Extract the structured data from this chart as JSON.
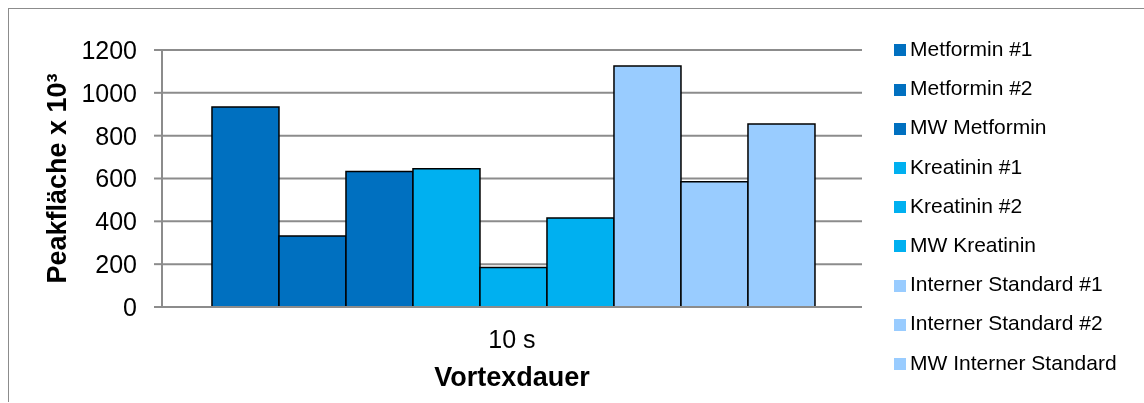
{
  "chart_data": {
    "type": "bar",
    "xlabel": "Vortexdauer",
    "ylabel": "Peakfläche x 10³",
    "categories": [
      "10 s"
    ],
    "series": [
      {
        "name": "Metformin #1",
        "color": "#0070c0",
        "values": [
          934
        ]
      },
      {
        "name": "Metformin #2",
        "color": "#0070c0",
        "values": [
          332
        ]
      },
      {
        "name": "MW Metformin",
        "color": "#0070c0",
        "values": [
          633
        ]
      },
      {
        "name": "Kreatinin #1",
        "color": "#00b0f0",
        "values": [
          646
        ]
      },
      {
        "name": "Kreatinin #2",
        "color": "#00b0f0",
        "values": [
          185
        ]
      },
      {
        "name": "MW Kreatinin",
        "color": "#00b0f0",
        "values": [
          416
        ]
      },
      {
        "name": "Interner Standard #1",
        "color": "#99ccff",
        "values": [
          1125
        ]
      },
      {
        "name": "Interner Standard #2",
        "color": "#99ccff",
        "values": [
          585
        ]
      },
      {
        "name": "MW Interner Standard",
        "color": "#99ccff",
        "values": [
          854
        ]
      }
    ],
    "ylim": [
      0,
      1200
    ],
    "yticks": [
      0,
      200,
      400,
      600,
      800,
      1000,
      1200
    ],
    "grid": "y",
    "legend": "right"
  }
}
